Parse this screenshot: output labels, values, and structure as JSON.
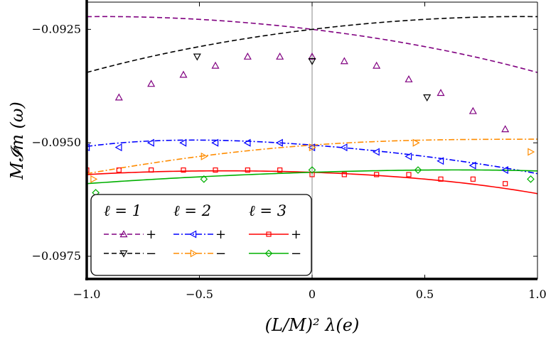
{
  "chart_data": {
    "type": "scatter",
    "xlabel": "(L/M)² λ(e)",
    "ylabel": "M𝓘m (ω)",
    "xlim": [
      -1.0,
      1.0
    ],
    "ylim": [
      -0.098,
      -0.0919
    ],
    "xticks": [
      -1.0,
      -0.5,
      0,
      0.5,
      1.0
    ],
    "xtick_labels": [
      "−1.0",
      "−0.5",
      "0",
      "0.5",
      "1.0"
    ],
    "yticks": [
      -0.0925,
      -0.095,
      -0.0975
    ],
    "ytick_labels": [
      "−0.0925",
      "−0.0950",
      "−0.0975"
    ],
    "vline_x": 0,
    "legend": {
      "placement": "bottom-left",
      "headers": [
        "ℓ = 1",
        "ℓ = 2",
        "ℓ = 3"
      ]
    },
    "series": [
      {
        "name": "ℓ=1 +",
        "legend_sign": "+",
        "color": "#800080",
        "dash": "dashed",
        "marker": "triangle-up",
        "curve": [
          [
            -1.0,
            -0.09222
          ],
          [
            -0.5,
            -0.09228
          ],
          [
            0,
            -0.0925
          ],
          [
            0.5,
            -0.09288
          ],
          [
            1.0,
            -0.09345
          ]
        ],
        "points": [
          [
            -0.857,
            -0.094
          ],
          [
            -0.714,
            -0.0937
          ],
          [
            -0.571,
            -0.0935
          ],
          [
            -0.429,
            -0.0933
          ],
          [
            -0.286,
            -0.0931
          ],
          [
            -0.143,
            -0.0931
          ],
          [
            0,
            -0.0931
          ],
          [
            0.143,
            -0.0932
          ],
          [
            0.286,
            -0.0933
          ],
          [
            0.429,
            -0.0936
          ],
          [
            0.571,
            -0.0939
          ],
          [
            0.714,
            -0.0943
          ],
          [
            0.857,
            -0.0947
          ]
        ]
      },
      {
        "name": "ℓ=1 −",
        "legend_sign": "−",
        "color": "#000000",
        "dash": "dashed",
        "marker": "triangle-down",
        "curve": [
          [
            -1.0,
            -0.09345
          ],
          [
            -0.5,
            -0.09288
          ],
          [
            0,
            -0.0925
          ],
          [
            0.5,
            -0.09228
          ],
          [
            1.0,
            -0.09222
          ]
        ],
        "points": [
          [
            -0.51,
            -0.0931
          ],
          [
            0,
            -0.0932
          ],
          [
            0.51,
            -0.094
          ]
        ]
      },
      {
        "name": "ℓ=2 +",
        "legend_sign": "+",
        "color": "#0000ff",
        "dash": "dashdot",
        "marker": "triangle-left",
        "curve": [
          [
            -1.0,
            -0.09508
          ],
          [
            -0.5,
            -0.09494
          ],
          [
            0,
            -0.09505
          ],
          [
            0.5,
            -0.0953
          ],
          [
            1.0,
            -0.09568
          ]
        ],
        "points": [
          [
            -1.0,
            -0.0951
          ],
          [
            -0.857,
            -0.0951
          ],
          [
            -0.714,
            -0.095
          ],
          [
            -0.571,
            -0.095
          ],
          [
            -0.429,
            -0.095
          ],
          [
            -0.286,
            -0.095
          ],
          [
            -0.143,
            -0.095
          ],
          [
            0,
            -0.0951
          ],
          [
            0.143,
            -0.0951
          ],
          [
            0.286,
            -0.0952
          ],
          [
            0.429,
            -0.0953
          ],
          [
            0.571,
            -0.0954
          ],
          [
            0.714,
            -0.0955
          ],
          [
            0.857,
            -0.0956
          ]
        ]
      },
      {
        "name": "ℓ=2 −",
        "legend_sign": "−",
        "color": "#ff8c00",
        "dash": "dashdot",
        "marker": "triangle-right",
        "curve": [
          [
            -1.0,
            -0.09568
          ],
          [
            -0.5,
            -0.0953
          ],
          [
            0,
            -0.09505
          ],
          [
            0.5,
            -0.09494
          ],
          [
            1.0,
            -0.09492
          ]
        ],
        "points": [
          [
            -0.97,
            -0.0958
          ],
          [
            -0.48,
            -0.0953
          ],
          [
            0,
            -0.0951
          ],
          [
            0.46,
            -0.095
          ],
          [
            0.97,
            -0.0952
          ]
        ]
      },
      {
        "name": "ℓ=3 +",
        "legend_sign": "+",
        "color": "#ff0000",
        "dash": "solid",
        "marker": "square",
        "curve": [
          [
            -1.0,
            -0.0957
          ],
          [
            -0.5,
            -0.09562
          ],
          [
            0,
            -0.09565
          ],
          [
            0.5,
            -0.0958
          ],
          [
            1.0,
            -0.09612
          ]
        ],
        "points": [
          [
            -1.0,
            -0.0956
          ],
          [
            -0.857,
            -0.0956
          ],
          [
            -0.714,
            -0.0956
          ],
          [
            -0.571,
            -0.0956
          ],
          [
            -0.429,
            -0.0956
          ],
          [
            -0.286,
            -0.0956
          ],
          [
            -0.143,
            -0.0956
          ],
          [
            0,
            -0.0957
          ],
          [
            0.143,
            -0.0957
          ],
          [
            0.286,
            -0.0957
          ],
          [
            0.429,
            -0.0957
          ],
          [
            0.571,
            -0.0958
          ],
          [
            0.714,
            -0.0958
          ],
          [
            0.857,
            -0.0959
          ]
        ]
      },
      {
        "name": "ℓ=3 −",
        "legend_sign": "−",
        "color": "#00b000",
        "dash": "solid",
        "marker": "diamond",
        "curve": [
          [
            -1.0,
            -0.0959
          ],
          [
            -0.5,
            -0.09575
          ],
          [
            0,
            -0.09565
          ],
          [
            0.5,
            -0.0956
          ],
          [
            1.0,
            -0.09562
          ]
        ],
        "points": [
          [
            -0.96,
            -0.0961
          ],
          [
            -0.48,
            -0.0958
          ],
          [
            0,
            -0.0956
          ],
          [
            0.47,
            -0.0956
          ],
          [
            0.97,
            -0.0958
          ]
        ]
      }
    ]
  }
}
